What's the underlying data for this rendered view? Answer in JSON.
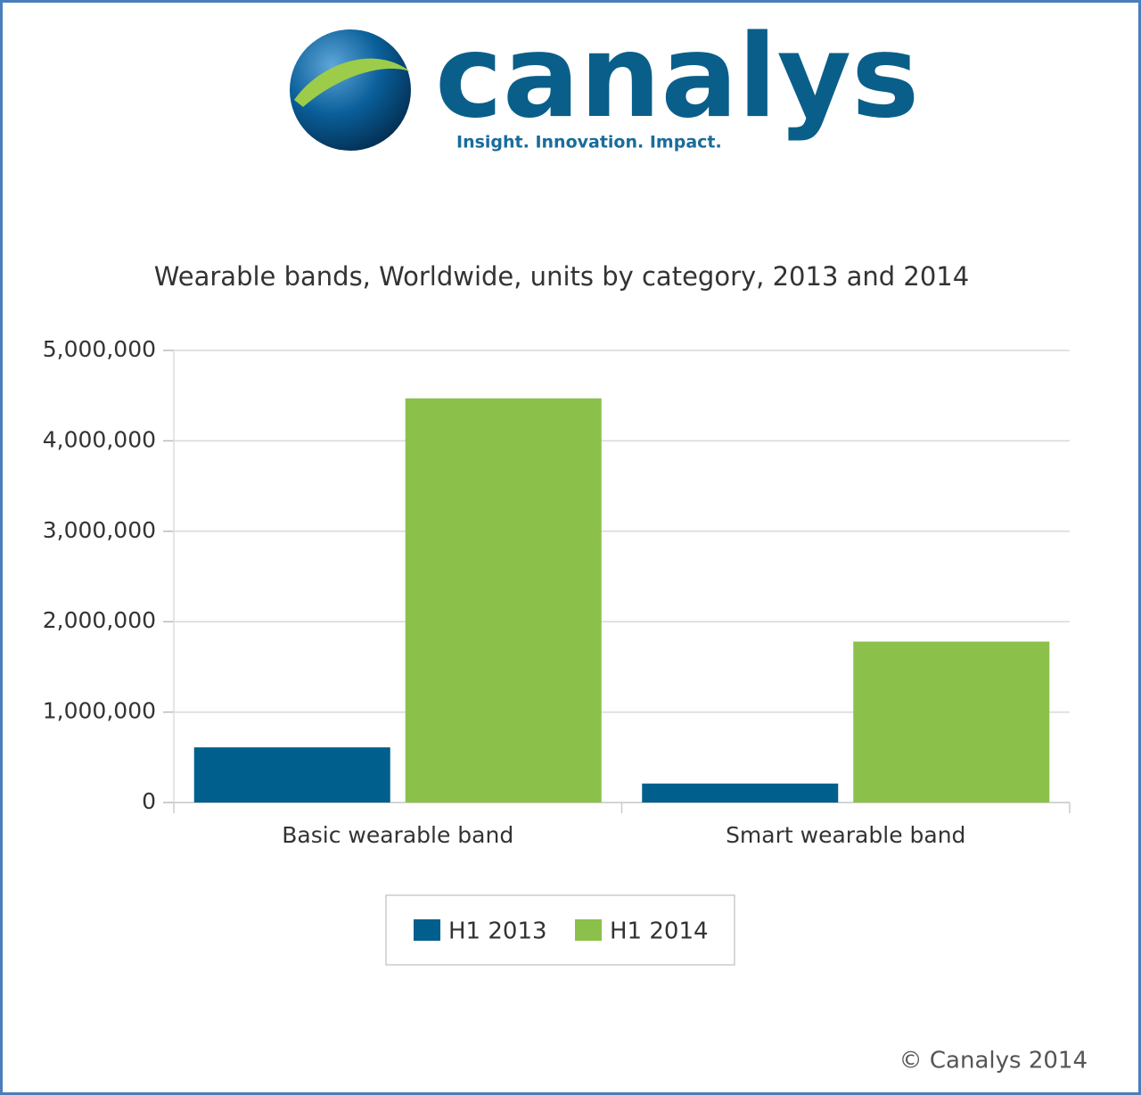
{
  "logo": {
    "name": "canalys",
    "tagline": "Insight. Innovation. Impact."
  },
  "chart_data": {
    "type": "bar",
    "title": "Wearable bands, Worldwide, units by category, 2013 and 2014",
    "categories": [
      "Basic wearable band",
      "Smart wearable band"
    ],
    "series": [
      {
        "name": "H1 2013",
        "color": "#005f8c",
        "values": [
          610000,
          210000
        ]
      },
      {
        "name": "H1 2014",
        "color": "#8bc04a",
        "values": [
          4470000,
          1780000
        ]
      }
    ],
    "ylim": [
      0,
      5000000
    ],
    "yticks": [
      0,
      {
        "value": 1000000,
        "label": "1,000,000"
      },
      {
        "value": 2000000,
        "label": "2,000,000"
      },
      {
        "value": 3000000,
        "label": "3,000,000"
      },
      {
        "value": 4000000,
        "label": "4,000,000"
      },
      {
        "value": 5000000,
        "label": "5,000,000"
      }
    ],
    "grid": true,
    "legend": "bottom"
  },
  "footer": "© Canalys 2014"
}
